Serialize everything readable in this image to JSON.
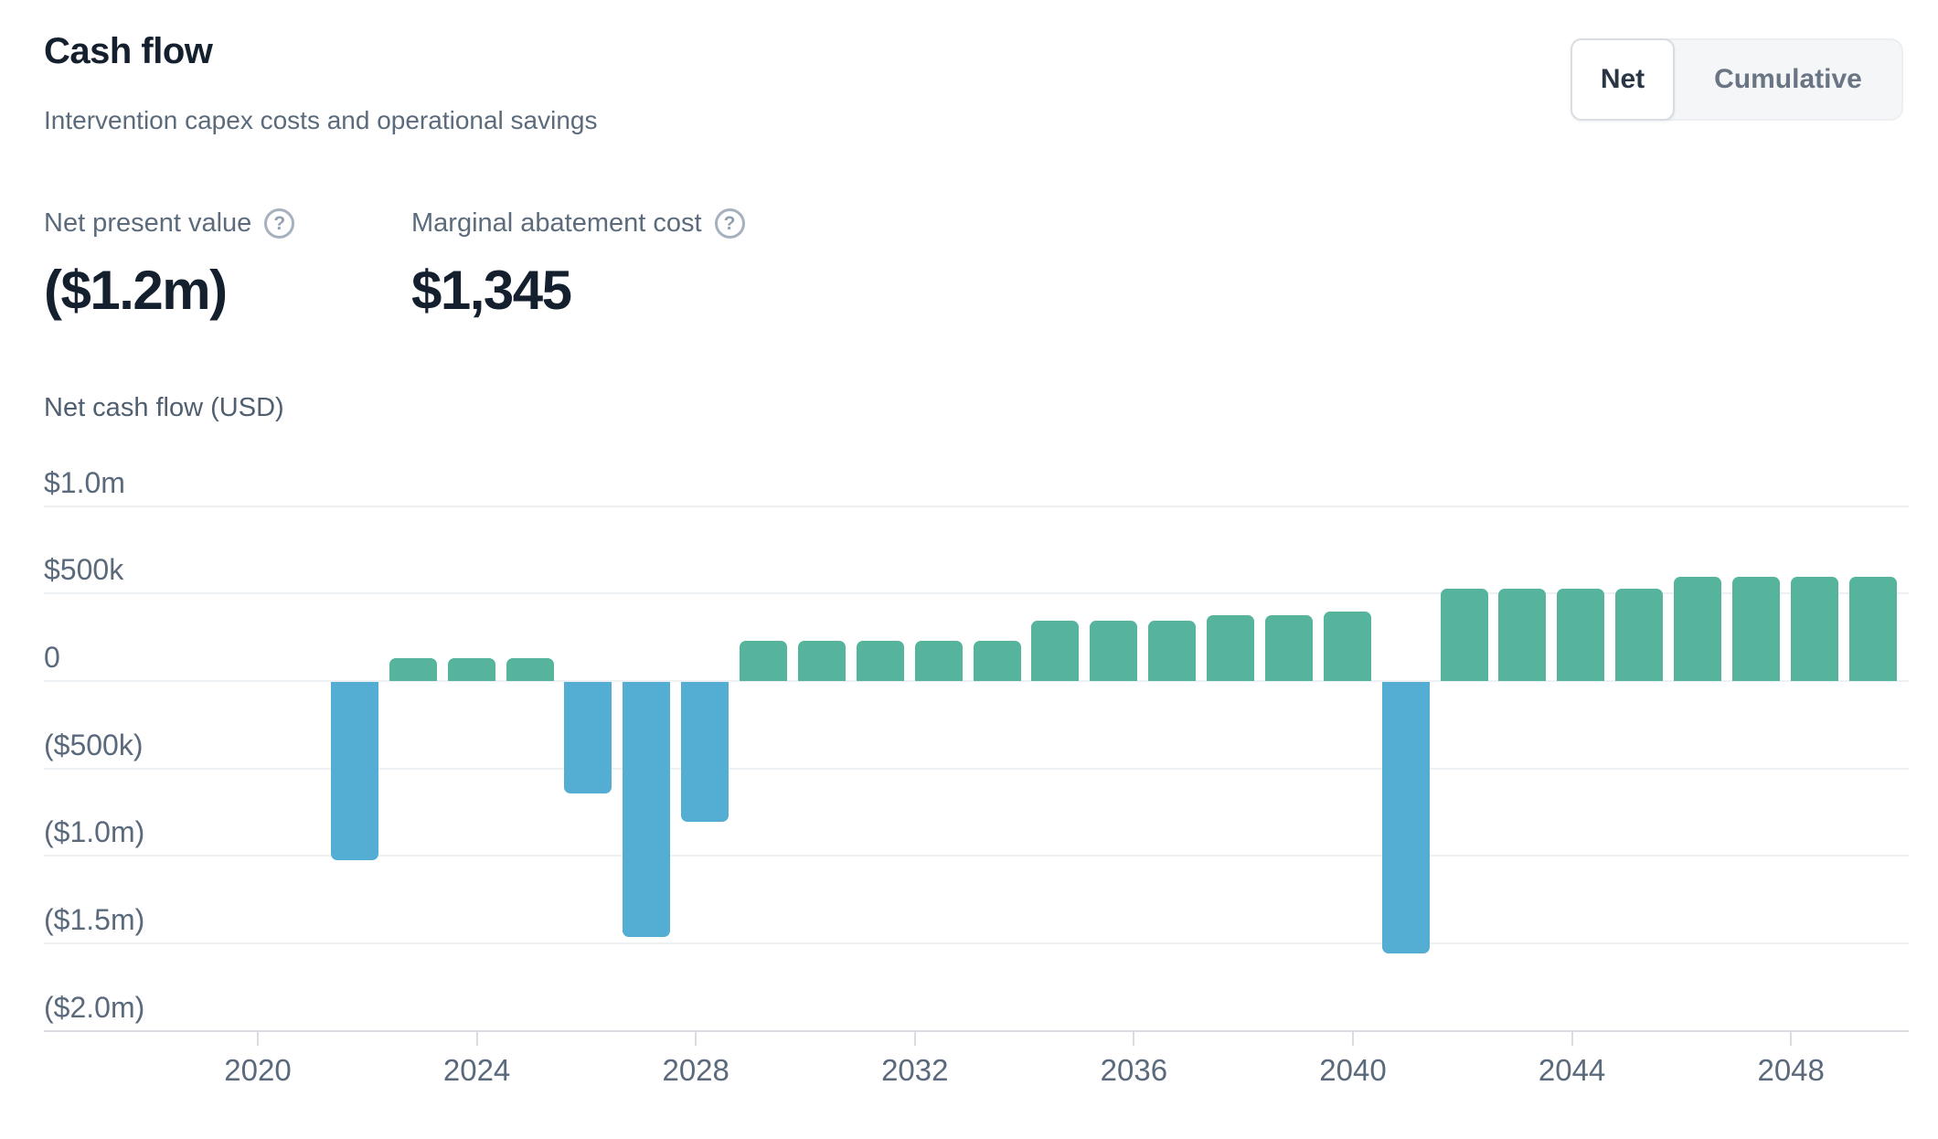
{
  "header": {
    "title": "Cash flow",
    "subtitle": "Intervention capex costs and operational savings"
  },
  "toggle": {
    "options": [
      {
        "id": "net",
        "label": "Net",
        "active": true
      },
      {
        "id": "cumulative",
        "label": "Cumulative",
        "active": false
      }
    ]
  },
  "metrics": [
    {
      "id": "npv",
      "label": "Net present value",
      "help_glyph": "?",
      "value": "($1.2m)"
    },
    {
      "id": "mac",
      "label": "Marginal abatement cost",
      "help_glyph": "?",
      "value": "$1,345"
    }
  ],
  "chart_data": {
    "type": "bar",
    "title": "Net cash flow (USD)",
    "categories": [
      2022,
      2023,
      2024,
      2025,
      2026,
      2027,
      2028,
      2029,
      2030,
      2031,
      2032,
      2033,
      2034,
      2035,
      2036,
      2037,
      2038,
      2039,
      2040,
      2041,
      2042,
      2043,
      2044,
      2045,
      2046,
      2047,
      2048
    ],
    "values": [
      -1020000,
      130000,
      130000,
      130000,
      -640000,
      -1460000,
      -800000,
      230000,
      230000,
      230000,
      230000,
      230000,
      345000,
      345000,
      345000,
      375000,
      375000,
      395000,
      -1550000,
      530000,
      530000,
      530000,
      530000,
      595000,
      595000,
      595000,
      595000
    ],
    "positive_color": "#55B49B",
    "negative_color": "#54ADD3",
    "y_ticks": [
      {
        "label": "$1.0m",
        "value": 1000000
      },
      {
        "label": "$500k",
        "value": 500000
      },
      {
        "label": "0",
        "value": 0
      },
      {
        "label": "($500k)",
        "value": -500000
      },
      {
        "label": "($1.0m)",
        "value": -1000000
      },
      {
        "label": "($1.5m)",
        "value": -1500000
      },
      {
        "label": "($2.0m)",
        "value": -2000000
      }
    ],
    "x_ticks": [
      2020,
      2024,
      2028,
      2032,
      2036,
      2040,
      2044,
      2048
    ],
    "ylim": [
      -2000000,
      1000000
    ],
    "grid": true,
    "legend": false
  }
}
